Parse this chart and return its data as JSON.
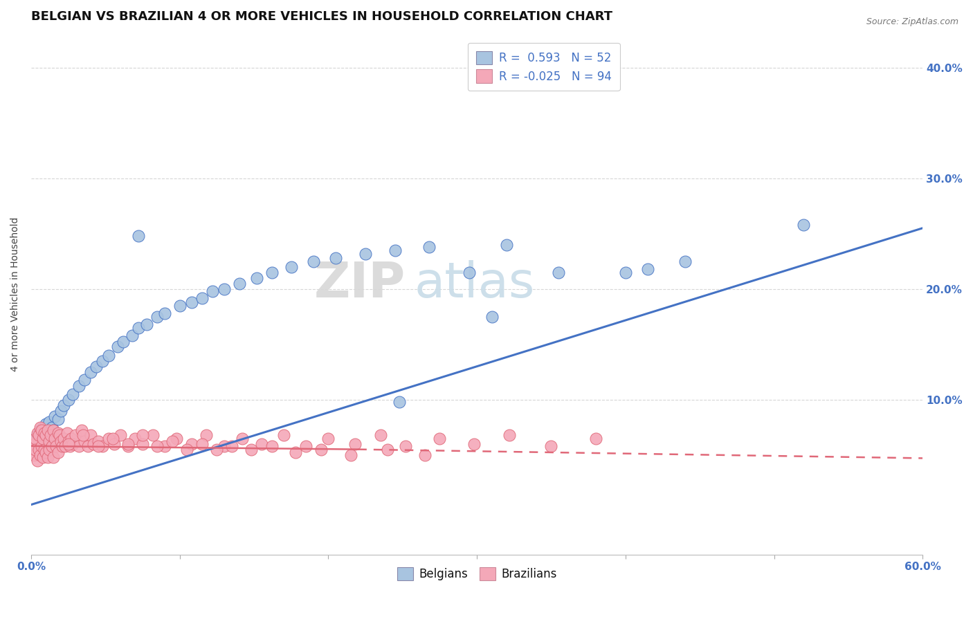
{
  "title": "BELGIAN VS BRAZILIAN 4 OR MORE VEHICLES IN HOUSEHOLD CORRELATION CHART",
  "source": "Source: ZipAtlas.com",
  "ylabel": "4 or more Vehicles in Household",
  "xlim": [
    0.0,
    0.6
  ],
  "ylim": [
    -0.04,
    0.43
  ],
  "legend_r_belgian": "0.593",
  "legend_n_belgian": "52",
  "legend_r_brazilian": "-0.025",
  "legend_n_brazilian": "94",
  "belgian_color": "#a8c4e0",
  "brazilian_color": "#f4a8b8",
  "trendline_belgian_color": "#4472c4",
  "trendline_brazilian_color": "#e06878",
  "watermark_zip": "ZIP",
  "watermark_atlas": "atlas",
  "grid_color": "#cccccc",
  "background_color": "#ffffff",
  "title_fontsize": 13,
  "axis_label_fontsize": 10,
  "tick_fontsize": 11,
  "legend_fontsize": 12,
  "bel_trendline": [
    0.0,
    0.6,
    0.005,
    0.255
  ],
  "braz_trendline_solid": [
    0.0,
    0.22,
    0.058,
    0.055
  ],
  "braz_trendline_dashed": [
    0.22,
    0.6,
    0.055,
    0.047
  ],
  "belgians_x": [
    0.004,
    0.006,
    0.008,
    0.009,
    0.01,
    0.011,
    0.012,
    0.014,
    0.015,
    0.016,
    0.018,
    0.02,
    0.022,
    0.025,
    0.028,
    0.032,
    0.036,
    0.04,
    0.044,
    0.048,
    0.052,
    0.058,
    0.062,
    0.068,
    0.072,
    0.078,
    0.085,
    0.09,
    0.1,
    0.108,
    0.115,
    0.122,
    0.13,
    0.14,
    0.152,
    0.162,
    0.175,
    0.19,
    0.205,
    0.225,
    0.245,
    0.268,
    0.295,
    0.32,
    0.355,
    0.4,
    0.415,
    0.44,
    0.31,
    0.52,
    0.248,
    0.072
  ],
  "belgians_y": [
    0.068,
    0.072,
    0.075,
    0.07,
    0.078,
    0.065,
    0.08,
    0.075,
    0.072,
    0.085,
    0.082,
    0.09,
    0.095,
    0.1,
    0.105,
    0.112,
    0.118,
    0.125,
    0.13,
    0.135,
    0.14,
    0.148,
    0.152,
    0.158,
    0.165,
    0.168,
    0.175,
    0.178,
    0.185,
    0.188,
    0.192,
    0.198,
    0.2,
    0.205,
    0.21,
    0.215,
    0.22,
    0.225,
    0.228,
    0.232,
    0.235,
    0.238,
    0.215,
    0.24,
    0.215,
    0.215,
    0.218,
    0.225,
    0.175,
    0.258,
    0.098,
    0.248
  ],
  "brazilians_x": [
    0.001,
    0.002,
    0.002,
    0.003,
    0.003,
    0.004,
    0.004,
    0.005,
    0.005,
    0.006,
    0.006,
    0.007,
    0.007,
    0.008,
    0.008,
    0.009,
    0.009,
    0.01,
    0.01,
    0.011,
    0.011,
    0.012,
    0.012,
    0.013,
    0.014,
    0.015,
    0.015,
    0.016,
    0.017,
    0.018,
    0.018,
    0.019,
    0.02,
    0.021,
    0.022,
    0.023,
    0.024,
    0.025,
    0.026,
    0.027,
    0.028,
    0.03,
    0.032,
    0.034,
    0.036,
    0.038,
    0.04,
    0.042,
    0.045,
    0.048,
    0.052,
    0.056,
    0.06,
    0.065,
    0.07,
    0.075,
    0.082,
    0.09,
    0.098,
    0.108,
    0.118,
    0.13,
    0.142,
    0.155,
    0.17,
    0.185,
    0.2,
    0.218,
    0.235,
    0.252,
    0.275,
    0.298,
    0.322,
    0.35,
    0.38,
    0.025,
    0.035,
    0.045,
    0.055,
    0.065,
    0.075,
    0.085,
    0.095,
    0.105,
    0.115,
    0.125,
    0.135,
    0.148,
    0.162,
    0.178,
    0.195,
    0.215,
    0.24,
    0.265
  ],
  "brazilians_y": [
    0.055,
    0.06,
    0.05,
    0.065,
    0.055,
    0.07,
    0.045,
    0.068,
    0.055,
    0.075,
    0.05,
    0.072,
    0.058,
    0.065,
    0.048,
    0.07,
    0.055,
    0.068,
    0.052,
    0.072,
    0.048,
    0.062,
    0.055,
    0.068,
    0.058,
    0.072,
    0.048,
    0.065,
    0.058,
    0.07,
    0.052,
    0.068,
    0.062,
    0.058,
    0.065,
    0.058,
    0.07,
    0.062,
    0.058,
    0.065,
    0.06,
    0.068,
    0.058,
    0.072,
    0.062,
    0.058,
    0.068,
    0.06,
    0.062,
    0.058,
    0.065,
    0.06,
    0.068,
    0.058,
    0.065,
    0.06,
    0.068,
    0.058,
    0.065,
    0.06,
    0.068,
    0.058,
    0.065,
    0.06,
    0.068,
    0.058,
    0.065,
    0.06,
    0.068,
    0.058,
    0.065,
    0.06,
    0.068,
    0.058,
    0.065,
    0.06,
    0.068,
    0.058,
    0.065,
    0.06,
    0.068,
    0.058,
    0.062,
    0.055,
    0.06,
    0.055,
    0.058,
    0.055,
    0.058,
    0.052,
    0.055,
    0.05,
    0.055,
    0.05
  ]
}
